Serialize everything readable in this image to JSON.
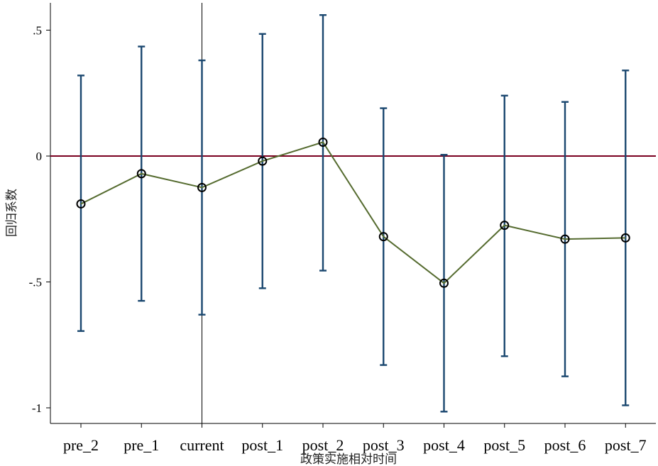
{
  "chart_data": {
    "type": "line",
    "xlabel": "政策实施相对时间",
    "ylabel": "回归系数",
    "categories": [
      "pre_2",
      "pre_1",
      "current",
      "post_1",
      "post_2",
      "post_3",
      "post_4",
      "post_5",
      "post_6",
      "post_7"
    ],
    "series": [
      {
        "values": [
          -0.19,
          -0.07,
          -0.125,
          -0.02,
          0.055,
          -0.32,
          -0.505,
          -0.275,
          -0.33,
          -0.325
        ],
        "ci_upper": [
          0.32,
          0.435,
          0.38,
          0.485,
          0.56,
          0.19,
          0.005,
          0.24,
          0.215,
          0.34
        ],
        "ci_lower": [
          -0.695,
          -0.575,
          -0.63,
          -0.525,
          -0.455,
          -0.83,
          -1.015,
          -0.795,
          -0.875,
          -0.99
        ]
      }
    ],
    "ylim": [
      -1.05,
      0.61
    ],
    "yticks": [
      0.5,
      0,
      -0.5,
      -1
    ],
    "ytick_labels": [
      ".5",
      "0",
      "-.5",
      "-1"
    ],
    "reference_line_y": 0,
    "reference_line_x_category": "current",
    "grid": false,
    "colors": {
      "error_bar": "#1a476f",
      "line": "#556b2f",
      "marker": "#000000",
      "zero_line": "#7a0020",
      "axis": "#000000"
    }
  }
}
